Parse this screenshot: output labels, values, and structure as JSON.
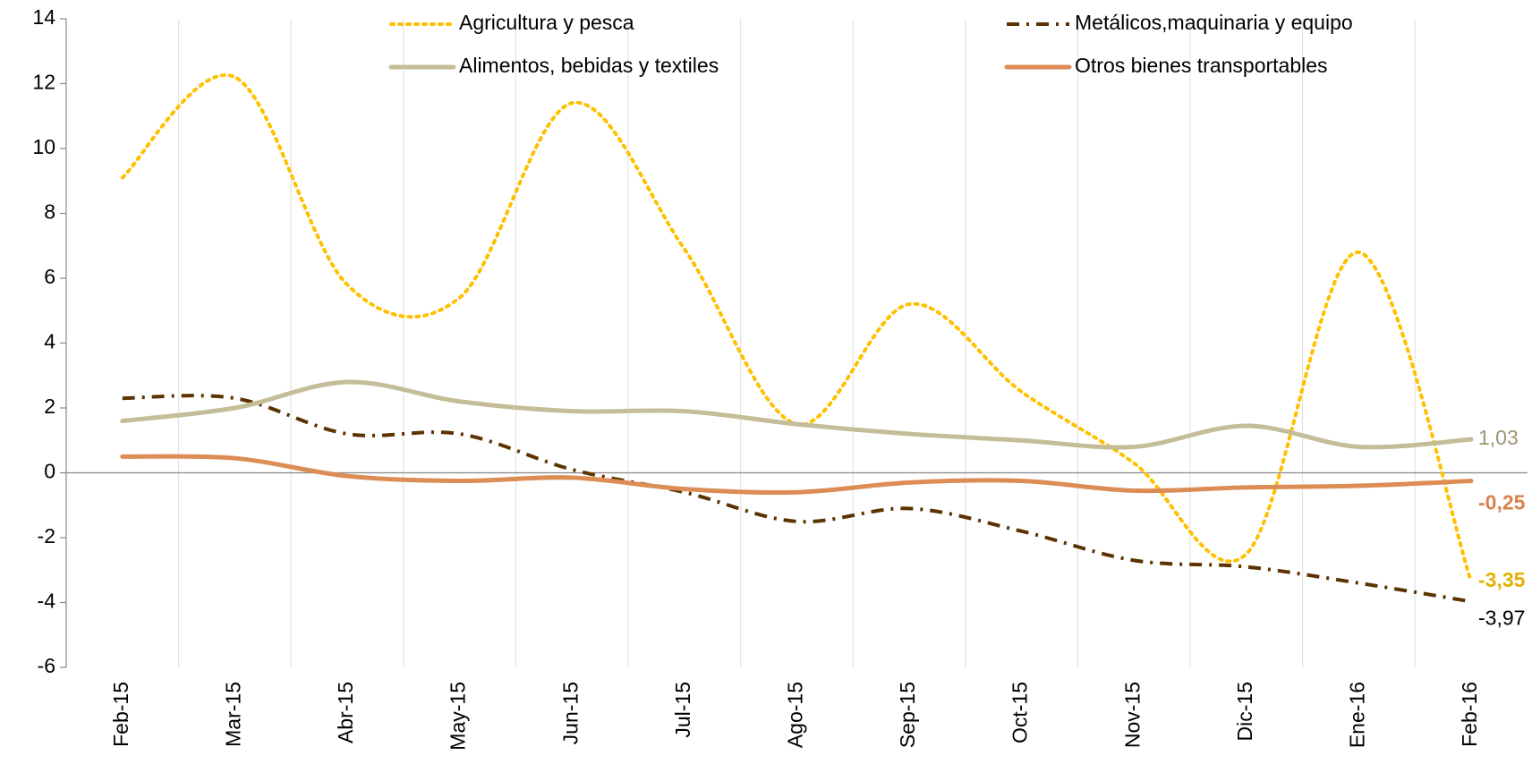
{
  "chart_data": {
    "type": "line",
    "categories": [
      "Feb-15",
      "Mar-15",
      "Abr-15",
      "May-15",
      "Jun-15",
      "Jul-15",
      "Ago-15",
      "Sep-15",
      "Oct-15",
      "Nov-15",
      "Dic-15",
      "Ene-16",
      "Feb-16"
    ],
    "series": [
      {
        "name": "Agricultura y pesca",
        "color": "#FFC000",
        "style": "dotted",
        "values": [
          9.1,
          12.2,
          5.8,
          5.4,
          11.4,
          6.9,
          1.5,
          5.2,
          2.5,
          0.3,
          -2.5,
          6.8,
          -3.35
        ],
        "value_labels": [
          null,
          null,
          null,
          null,
          null,
          null,
          null,
          null,
          null,
          null,
          null,
          null,
          "-3,35"
        ],
        "label_color": "#E6B000",
        "label_bold": true
      },
      {
        "name": "Metálicos,maquinaria y equipo",
        "color": "#5C3300",
        "style": "dashdot",
        "values": [
          2.3,
          2.3,
          1.2,
          1.2,
          0.1,
          -0.6,
          -1.5,
          -1.1,
          -1.8,
          -2.7,
          -2.9,
          -3.4,
          -3.97
        ],
        "value_labels": [
          null,
          null,
          null,
          null,
          null,
          null,
          null,
          null,
          null,
          null,
          null,
          null,
          "-3,97"
        ],
        "label_color": "#000000",
        "label_bold": false
      },
      {
        "name": "Alimentos, bebidas y textiles",
        "color": "#C4BD97",
        "style": "solid",
        "values": [
          1.6,
          2.0,
          2.8,
          2.2,
          1.9,
          1.9,
          1.5,
          1.2,
          1.0,
          0.8,
          1.45,
          0.8,
          1.03
        ],
        "value_labels": [
          null,
          null,
          null,
          null,
          null,
          null,
          null,
          null,
          null,
          null,
          null,
          null,
          "1,03"
        ],
        "label_color": "#9C9470",
        "label_bold": false
      },
      {
        "name": "Otros bienes transportables",
        "color": "#DC8C55",
        "style": "solid",
        "values": [
          0.5,
          0.45,
          -0.1,
          -0.25,
          -0.15,
          -0.5,
          -0.6,
          -0.3,
          -0.25,
          -0.55,
          -0.45,
          -0.4,
          -0.25
        ],
        "value_labels": [
          null,
          null,
          null,
          null,
          null,
          null,
          null,
          null,
          null,
          null,
          null,
          null,
          "-0,25"
        ],
        "label_color": "#D9834A",
        "label_bold": true
      }
    ],
    "ylim": [
      -6,
      14
    ],
    "yticks": [
      -6,
      -4,
      -2,
      0,
      2,
      4,
      6,
      8,
      10,
      12,
      14
    ],
    "grid": true
  }
}
